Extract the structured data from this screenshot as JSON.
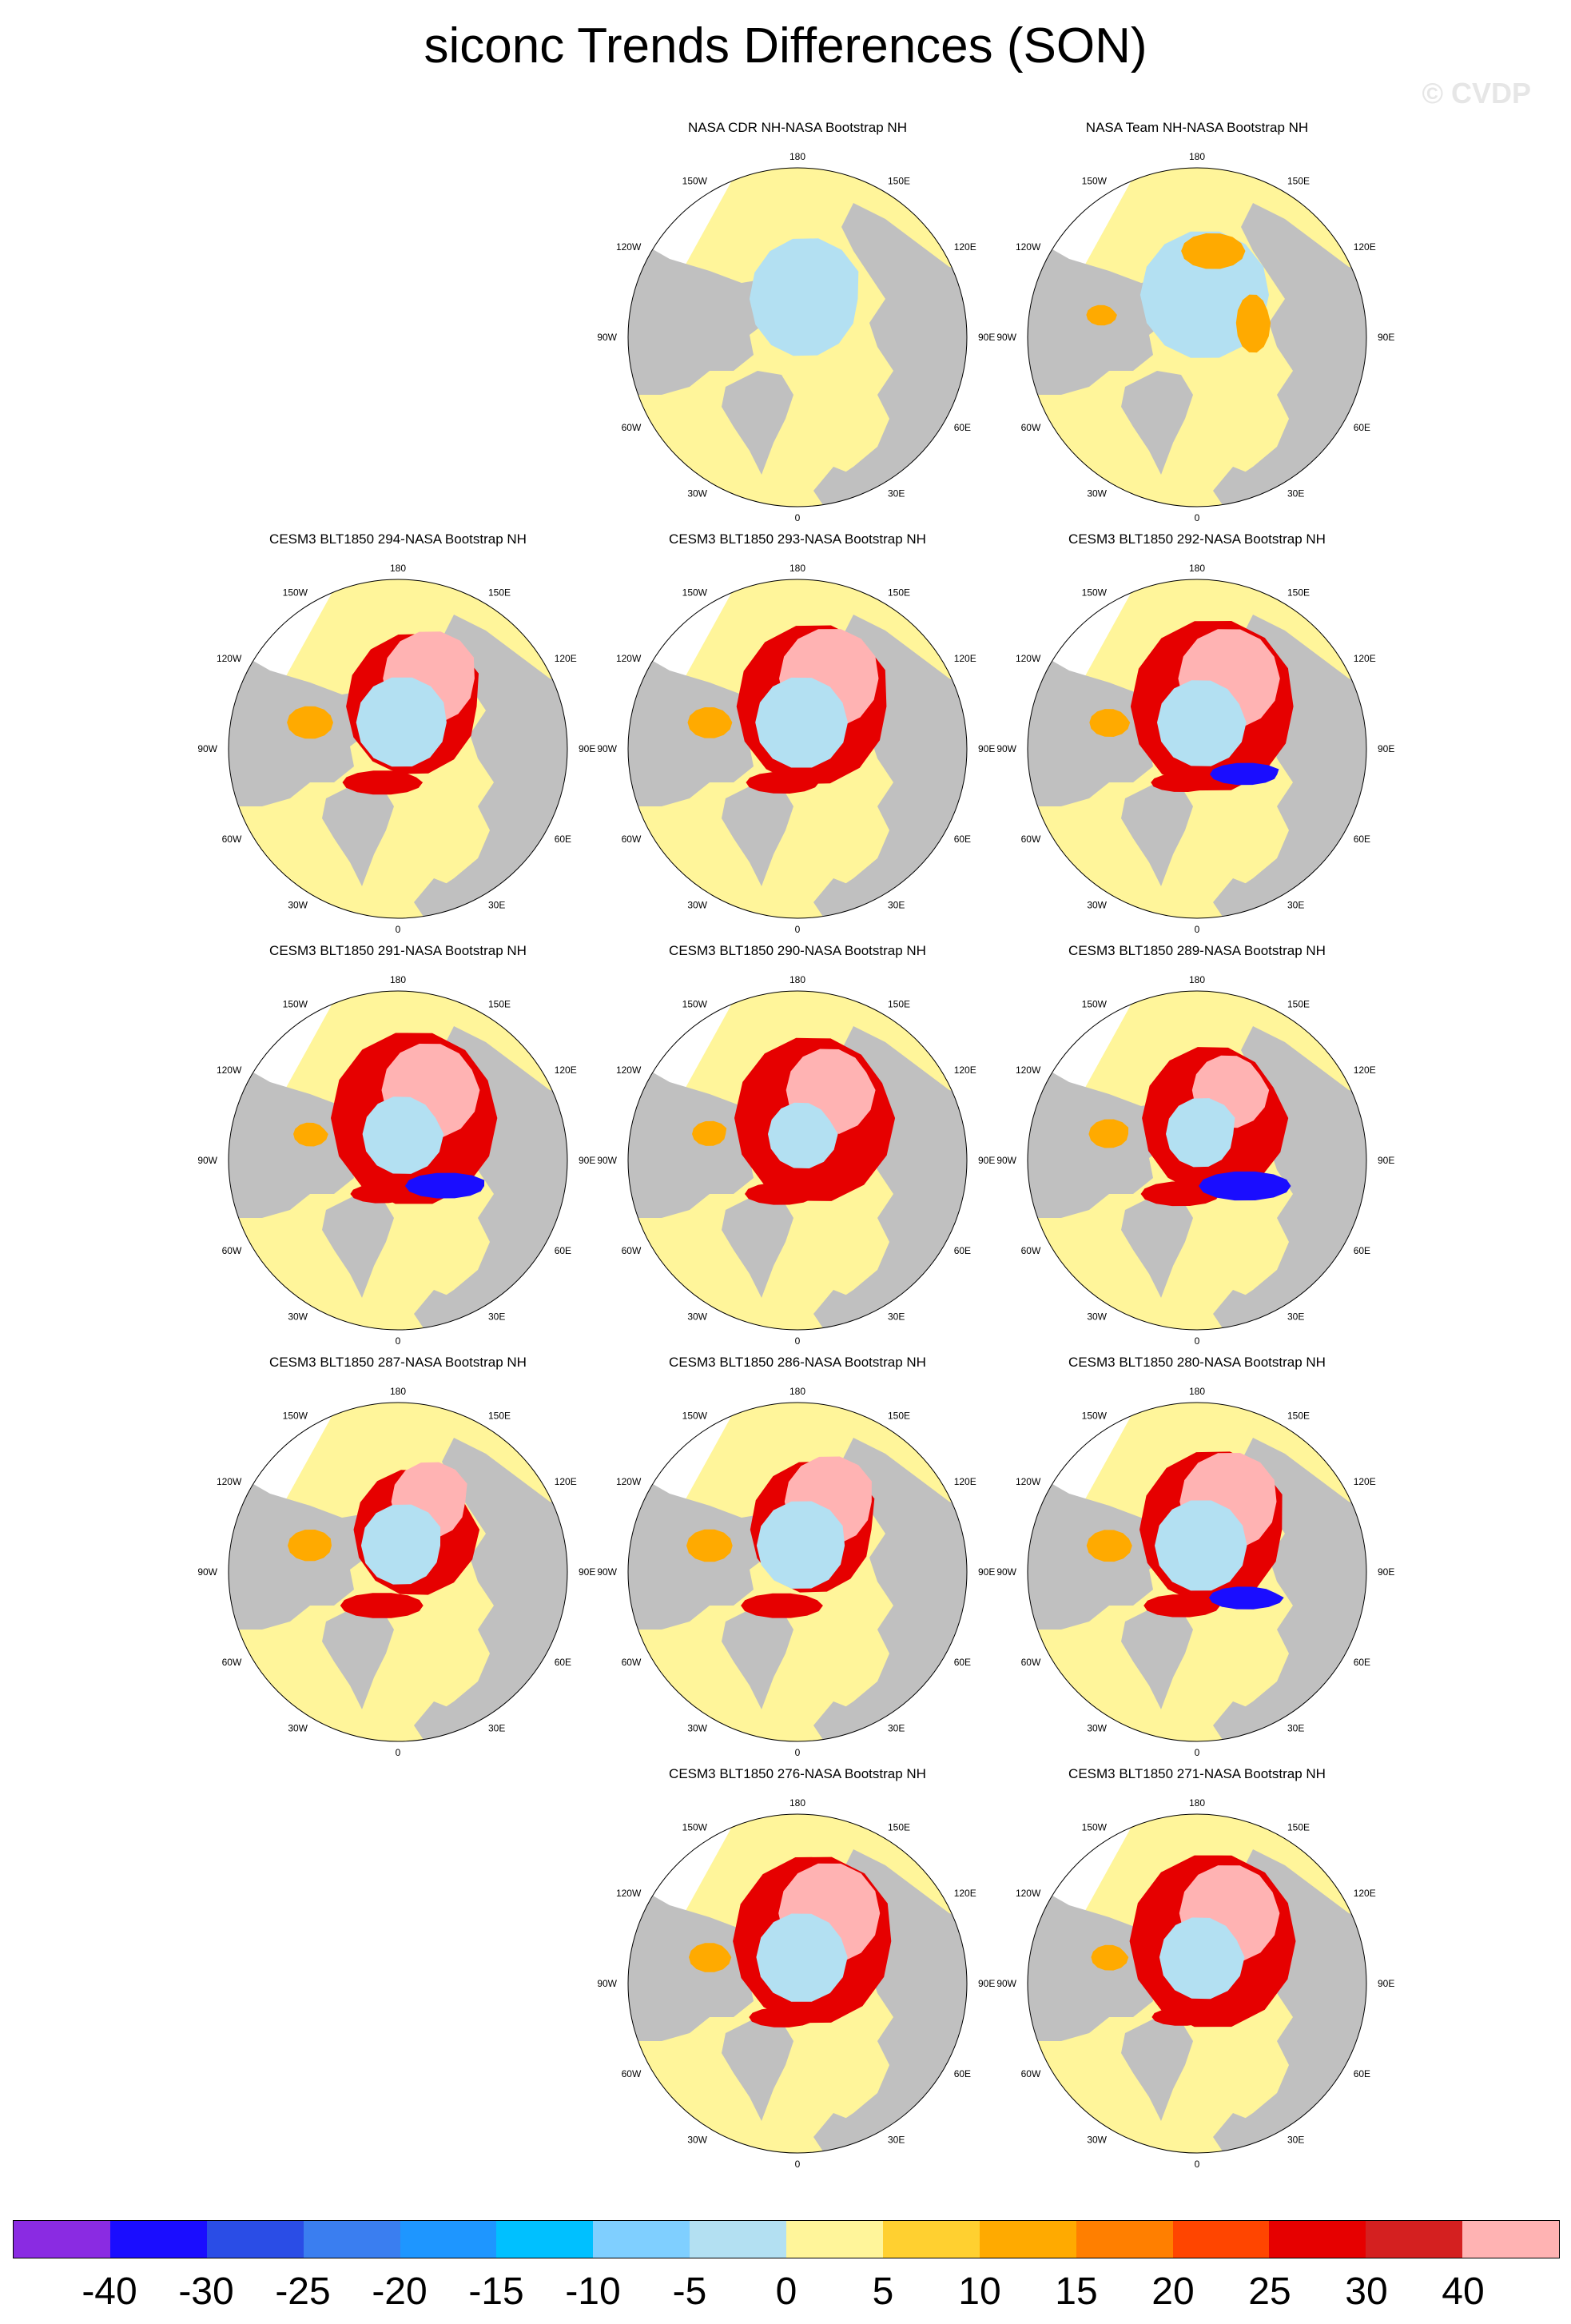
{
  "title": "siconc Trends Differences (SON)",
  "watermark": "© CVDP",
  "lon_labels": [
    "180",
    "150E",
    "120E",
    "90E",
    "60E",
    "30E",
    "0",
    "30W",
    "60W",
    "90W",
    "120W",
    "150W"
  ],
  "panels": [
    {
      "title": "NASA CDR NH-NASA Bootstrap NH",
      "row": 0,
      "col": 1,
      "pattern": "cdr"
    },
    {
      "title": "NASA Team NH-NASA Bootstrap NH",
      "row": 0,
      "col": 2,
      "pattern": "team"
    },
    {
      "title": "CESM3 BLT1850 294-NASA Bootstrap NH",
      "row": 1,
      "col": 0,
      "pattern": "model"
    },
    {
      "title": "CESM3 BLT1850 293-NASA Bootstrap NH",
      "row": 1,
      "col": 1,
      "pattern": "model"
    },
    {
      "title": "CESM3 BLT1850 292-NASA Bootstrap NH",
      "row": 1,
      "col": 2,
      "pattern": "model_blue"
    },
    {
      "title": "CESM3 BLT1850 291-NASA Bootstrap NH",
      "row": 2,
      "col": 0,
      "pattern": "model_blue"
    },
    {
      "title": "CESM3 BLT1850 290-NASA Bootstrap NH",
      "row": 2,
      "col": 1,
      "pattern": "model"
    },
    {
      "title": "CESM3 BLT1850 289-NASA Bootstrap NH",
      "row": 2,
      "col": 2,
      "pattern": "model_blue"
    },
    {
      "title": "CESM3 BLT1850 287-NASA Bootstrap NH",
      "row": 3,
      "col": 0,
      "pattern": "model"
    },
    {
      "title": "CESM3 BLT1850 286-NASA Bootstrap NH",
      "row": 3,
      "col": 1,
      "pattern": "model"
    },
    {
      "title": "CESM3 BLT1850 280-NASA Bootstrap NH",
      "row": 3,
      "col": 2,
      "pattern": "model_blue"
    },
    {
      "title": "CESM3 BLT1850 276-NASA Bootstrap NH",
      "row": 4,
      "col": 1,
      "pattern": "model"
    },
    {
      "title": "CESM3 BLT1850 271-NASA Bootstrap NH",
      "row": 4,
      "col": 2,
      "pattern": "model"
    }
  ],
  "colorbar": {
    "colors": [
      "#8a2be2",
      "#1a0dff",
      "#2a4de6",
      "#3a7ef0",
      "#1e96ff",
      "#00c0ff",
      "#7fcfff",
      "#b3e0f2",
      "#fff59a",
      "#ffd030",
      "#ffaa00",
      "#ff7f00",
      "#ff4500",
      "#e60000",
      "#d42020",
      "#ffb3b3"
    ],
    "labels": [
      "-40",
      "-30",
      "-25",
      "-20",
      "-15",
      "-10",
      "-5",
      "0",
      "5",
      "10",
      "15",
      "20",
      "25",
      "30",
      "40"
    ]
  },
  "map_colors": {
    "land": "#c0c0c0",
    "ocean_small": "#fff59a",
    "missing": "#ffffff",
    "pos_large": "#ffb3b3",
    "pos_mid": "#e60000",
    "pos_low": "#ffaa00",
    "neg_small": "#b3e0f2",
    "neg_large": "#1a0dff"
  }
}
